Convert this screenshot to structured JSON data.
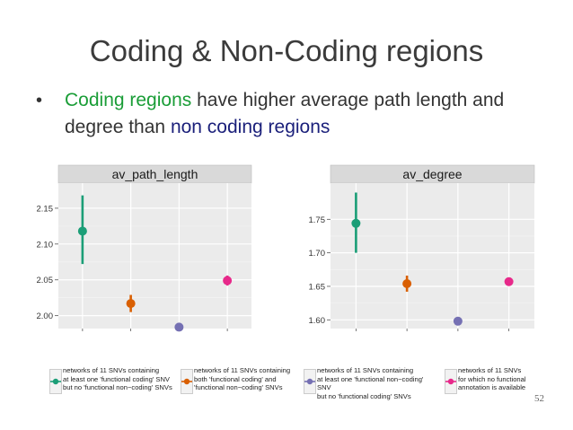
{
  "slide": {
    "title": "Coding & Non-Coding regions",
    "bullet": {
      "marker": "•",
      "parts": {
        "coding": "Coding regions",
        "middle": " have higher average path length and degree than ",
        "noncoding": "non coding regions"
      }
    },
    "number": "52"
  },
  "colors": {
    "green": "#1b9e77",
    "orange": "#d95f02",
    "purple": "#7570b3",
    "pink": "#e7298a",
    "panel_bg": "#ebebeb",
    "strip_bg": "#d9d9d9"
  },
  "legend": {
    "items": [
      {
        "label": "networks of 11 SNVs containing\nat least one 'functional coding' SNV\nbut no 'functional non−coding' SNVs",
        "color": "#1b9e77"
      },
      {
        "label": "networks of 11 SNVs containing\nboth 'functional coding' and\n'functional non−coding' SNVs",
        "color": "#d95f02"
      },
      {
        "label": "networks of 11 SNVs containing\nat least one 'functional non−coding' SNV\nbut no 'functional coding' SNVs",
        "color": "#7570b3"
      },
      {
        "label": "networks of 11 SNVs\nfor which no functional\nannotation is available",
        "color": "#e7298a"
      }
    ]
  },
  "chart_data": [
    {
      "type": "scatter",
      "title": "av_path_length",
      "xlabel": "",
      "ylabel": "",
      "ylim": [
        1.982,
        2.185
      ],
      "yticks": [
        2.0,
        2.05,
        2.1,
        2.15
      ],
      "ytick_labels": [
        "2.00",
        "2.05",
        "2.10",
        "2.15"
      ],
      "grid": true,
      "series": [
        {
          "name": "coding only",
          "value": 2.118,
          "low": 2.072,
          "high": 2.168,
          "color": "#1b9e77"
        },
        {
          "name": "both",
          "value": 2.017,
          "low": 2.005,
          "high": 2.029,
          "color": "#d95f02"
        },
        {
          "name": "non-coding only",
          "value": 1.984,
          "low": 1.984,
          "high": 1.984,
          "color": "#7570b3"
        },
        {
          "name": "no annotation",
          "value": 2.049,
          "low": 2.042,
          "high": 2.056,
          "color": "#e7298a"
        }
      ]
    },
    {
      "type": "scatter",
      "title": "av_degree",
      "xlabel": "",
      "ylabel": "",
      "ylim": [
        1.587,
        1.804
      ],
      "yticks": [
        1.6,
        1.65,
        1.7,
        1.75
      ],
      "ytick_labels": [
        "1.60",
        "1.65",
        "1.70",
        "1.75"
      ],
      "grid": true,
      "series": [
        {
          "name": "coding only",
          "value": 1.744,
          "low": 1.7,
          "high": 1.79,
          "color": "#1b9e77"
        },
        {
          "name": "both",
          "value": 1.654,
          "low": 1.642,
          "high": 1.666,
          "color": "#d95f02"
        },
        {
          "name": "non-coding only",
          "value": 1.598,
          "low": 1.598,
          "high": 1.598,
          "color": "#7570b3"
        },
        {
          "name": "no annotation",
          "value": 1.657,
          "low": 1.651,
          "high": 1.663,
          "color": "#e7298a"
        }
      ]
    }
  ]
}
